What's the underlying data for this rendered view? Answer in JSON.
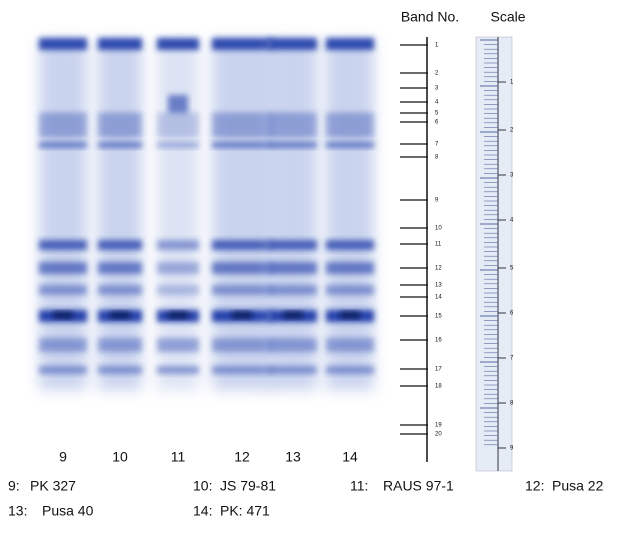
{
  "header": {
    "band_no": "Band No.",
    "scale": "Scale"
  },
  "lanes": [
    "9",
    "10",
    "11",
    "12",
    "13",
    "14"
  ],
  "bands": [
    "1",
    "2",
    "3",
    "4",
    "5",
    "6",
    "7",
    "8",
    "9",
    "10",
    "11",
    "12",
    "13",
    "14",
    "15",
    "16",
    "17",
    "18",
    "19",
    "20"
  ],
  "scale_labels": [
    "1",
    "2",
    "3",
    "4",
    "5",
    "6",
    "7",
    "8",
    "9"
  ],
  "legend": [
    {
      "key": "9:",
      "name": "PK 327"
    },
    {
      "key": "10:",
      "name": "JS 79-81"
    },
    {
      "key": "11:",
      "name": "RAUS 97-1"
    },
    {
      "key": "12:",
      "name": "Pusa 22"
    },
    {
      "key": "13:",
      "name": "Pusa 40"
    },
    {
      "key": "14:",
      "name": "PK: 471"
    }
  ]
}
